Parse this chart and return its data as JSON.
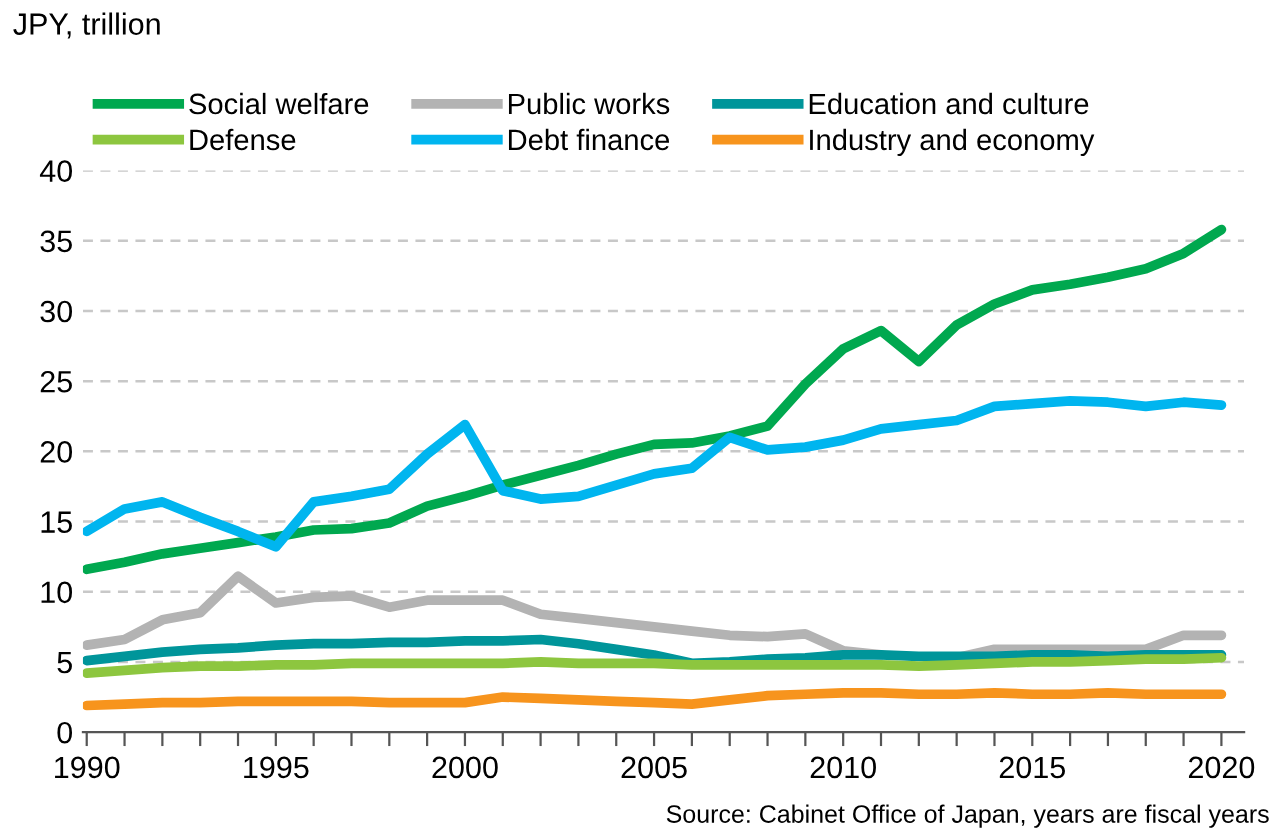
{
  "chart_data": {
    "type": "line",
    "ylabel": "JPY, trillion",
    "x": [
      1990,
      1991,
      1992,
      1993,
      1994,
      1995,
      1996,
      1997,
      1998,
      1999,
      2000,
      2001,
      2002,
      2003,
      2004,
      2005,
      2006,
      2007,
      2008,
      2009,
      2010,
      2011,
      2012,
      2013,
      2014,
      2015,
      2016,
      2017,
      2018,
      2019,
      2020
    ],
    "series": [
      {
        "name": "Social welfare",
        "color": "#00a84f",
        "values": [
          11.6,
          12.1,
          12.7,
          13.1,
          13.5,
          13.9,
          14.4,
          14.5,
          14.9,
          16.1,
          16.8,
          17.6,
          18.3,
          19.0,
          19.8,
          20.5,
          20.6,
          21.1,
          21.8,
          24.8,
          27.3,
          28.6,
          26.4,
          29.0,
          30.5,
          31.5,
          31.9,
          32.4,
          33.0,
          34.1,
          35.8
        ]
      },
      {
        "name": "Public works",
        "color": "#b3b3b3",
        "values": [
          6.2,
          6.6,
          8.0,
          8.5,
          11.1,
          9.2,
          9.6,
          9.7,
          8.9,
          9.4,
          9.4,
          9.4,
          8.4,
          8.1,
          7.8,
          7.5,
          7.2,
          6.9,
          6.8,
          7.0,
          5.8,
          5.5,
          null,
          5.3,
          5.9,
          5.9,
          5.9,
          5.9,
          5.9,
          6.9,
          6.9
        ]
      },
      {
        "name": "Education and culture",
        "color": "#00959a",
        "values": [
          5.1,
          5.4,
          5.7,
          5.9,
          6.0,
          6.2,
          6.3,
          6.3,
          6.4,
          6.4,
          6.5,
          6.5,
          6.6,
          6.3,
          5.9,
          5.5,
          4.9,
          5.0,
          5.2,
          5.3,
          5.5,
          5.5,
          5.4,
          5.4,
          5.4,
          5.5,
          5.5,
          5.4,
          5.5,
          5.5,
          5.5
        ]
      },
      {
        "name": "Defense",
        "color": "#8dc63f",
        "values": [
          4.2,
          4.4,
          4.6,
          4.7,
          4.7,
          4.8,
          4.8,
          4.9,
          4.9,
          4.9,
          4.9,
          4.9,
          5.0,
          4.9,
          4.9,
          4.9,
          4.8,
          4.8,
          4.8,
          4.8,
          4.8,
          4.8,
          4.7,
          4.8,
          4.9,
          5.0,
          5.0,
          5.1,
          5.2,
          5.2,
          5.3
        ]
      },
      {
        "name": "Debt finance",
        "color": "#00b5ef",
        "values": [
          14.3,
          15.9,
          16.4,
          15.3,
          14.3,
          13.2,
          16.4,
          16.8,
          17.3,
          19.8,
          21.9,
          17.2,
          16.6,
          16.8,
          17.6,
          18.4,
          18.8,
          21.0,
          20.1,
          20.3,
          20.8,
          21.6,
          21.9,
          22.2,
          23.2,
          23.4,
          23.6,
          23.5,
          23.2,
          23.5,
          23.3
        ]
      },
      {
        "name": "Industry and economy",
        "color": "#f7941d",
        "values": [
          1.9,
          2.0,
          2.1,
          2.1,
          2.2,
          2.2,
          2.2,
          2.2,
          2.1,
          2.1,
          2.1,
          2.5,
          2.4,
          2.3,
          2.2,
          2.1,
          2.0,
          2.3,
          2.6,
          2.7,
          2.8,
          2.8,
          2.7,
          2.7,
          2.8,
          2.7,
          2.7,
          2.8,
          2.7,
          2.7,
          2.7
        ]
      }
    ],
    "xlim": [
      1989.9,
      2020.6
    ],
    "xticks": [
      1990,
      {
        "value": 1991,
        "label": null
      },
      {
        "value": 1992,
        "label": null
      },
      {
        "value": 1993,
        "label": null
      },
      {
        "value": 1994,
        "label": null
      },
      1995,
      {
        "value": 1996,
        "label": null
      },
      {
        "value": 1997,
        "label": null
      },
      {
        "value": 1998,
        "label": null
      },
      {
        "value": 1999,
        "label": null
      },
      2000,
      {
        "value": 2001,
        "label": null
      },
      {
        "value": 2002,
        "label": null
      },
      {
        "value": 2003,
        "label": null
      },
      {
        "value": 2004,
        "label": null
      },
      2005,
      {
        "value": 2006,
        "label": null
      },
      {
        "value": 2007,
        "label": null
      },
      {
        "value": 2008,
        "label": null
      },
      {
        "value": 2009,
        "label": null
      },
      2010,
      {
        "value": 2011,
        "label": null
      },
      {
        "value": 2012,
        "label": null
      },
      {
        "value": 2013,
        "label": null
      },
      {
        "value": 2014,
        "label": null
      },
      2015,
      {
        "value": 2016,
        "label": null
      },
      {
        "value": 2017,
        "label": null
      },
      {
        "value": 2018,
        "label": null
      },
      {
        "value": 2019,
        "label": null
      },
      2020
    ],
    "ylim": [
      0,
      40
    ],
    "yticks": [
      0,
      5,
      10,
      15,
      20,
      25,
      30,
      35,
      40
    ],
    "grid": "y",
    "legend": "top",
    "marker": "none",
    "line_style": "solid",
    "annotations": [
      "Source: Cabinet Office of Japan, years are fiscal years"
    ]
  }
}
